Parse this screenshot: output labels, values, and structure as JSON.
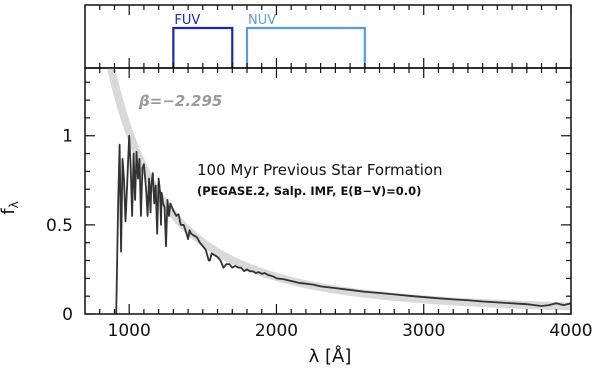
{
  "chart_data": {
    "type": "line",
    "xlabel": "λ  [Å]",
    "ylabel": "f",
    "ylabel_subscript": "λ",
    "xlim": [
      700,
      4000
    ],
    "ylim": [
      0,
      1.38
    ],
    "xticks_major": [
      1000,
      2000,
      3000,
      4000
    ],
    "xticks_minor_step": 100,
    "yticks_major": [
      0,
      0.5,
      1
    ],
    "ytick_labels": [
      "0",
      "0.5",
      "1"
    ],
    "yticks_minor_step": 0.1,
    "colors": {
      "spectrum": "#333333",
      "fit": "#d9d9d9",
      "fuv": "#1a2aa8",
      "nuv": "#5b9be0",
      "beta_text": "#9a9a9a"
    },
    "annotations": {
      "beta_symbol": "β",
      "beta_value": "=−2.295",
      "title_line1": "100 Myr Previous Star Formation",
      "title_line2": "(PEGASE.2, Salp. IMF, E(B−V)=0.0)"
    },
    "filters": [
      {
        "name": "FUV",
        "x_start": 1300,
        "x_end": 1700,
        "color": "#1a2aa8"
      },
      {
        "name": "NUV",
        "x_start": 1800,
        "x_end": 2600,
        "color": "#5b9be0"
      }
    ],
    "series": [
      {
        "type": "powerlaw_fit",
        "beta": -2.295,
        "norm_at_1000": 1.02,
        "x_range": [
          850,
          4000
        ]
      },
      {
        "type": "spectrum",
        "x": [
          912,
          925,
          935,
          945,
          955,
          965,
          975,
          985,
          1000,
          1010,
          1020,
          1030,
          1040,
          1050,
          1060,
          1070,
          1080,
          1090,
          1100,
          1115,
          1125,
          1135,
          1145,
          1150,
          1160,
          1170,
          1180,
          1190,
          1200,
          1210,
          1216,
          1220,
          1230,
          1240,
          1250,
          1260,
          1270,
          1280,
          1290,
          1300,
          1320,
          1335,
          1350,
          1370,
          1390,
          1400,
          1410,
          1420,
          1440,
          1460,
          1480,
          1500,
          1520,
          1540,
          1548,
          1560,
          1580,
          1600,
          1620,
          1640,
          1660,
          1680,
          1700,
          1720,
          1740,
          1760,
          1780,
          1800,
          1820,
          1840,
          1860,
          1880,
          1900,
          1920,
          1940,
          1960,
          1980,
          2000,
          2050,
          2100,
          2150,
          2200,
          2250,
          2300,
          2400,
          2500,
          2600,
          2700,
          2800,
          2900,
          3000,
          3100,
          3200,
          3300,
          3400,
          3500,
          3600,
          3700,
          3750,
          3800,
          3850,
          3900,
          3950,
          4000
        ],
        "y": [
          0.0,
          0.62,
          0.95,
          0.35,
          0.87,
          0.75,
          0.52,
          0.7,
          1.0,
          0.83,
          0.55,
          0.9,
          0.64,
          0.91,
          0.76,
          0.87,
          0.55,
          0.82,
          0.84,
          0.7,
          0.55,
          0.76,
          0.57,
          0.72,
          0.79,
          0.62,
          0.72,
          0.45,
          0.76,
          0.68,
          0.5,
          0.68,
          0.62,
          0.6,
          0.38,
          0.64,
          0.55,
          0.62,
          0.6,
          0.58,
          0.55,
          0.56,
          0.5,
          0.5,
          0.45,
          0.42,
          0.47,
          0.45,
          0.44,
          0.43,
          0.4,
          0.38,
          0.36,
          0.3,
          0.3,
          0.34,
          0.33,
          0.32,
          0.3,
          0.26,
          0.28,
          0.28,
          0.26,
          0.27,
          0.26,
          0.26,
          0.24,
          0.25,
          0.24,
          0.24,
          0.23,
          0.235,
          0.225,
          0.23,
          0.22,
          0.215,
          0.21,
          0.2,
          0.195,
          0.185,
          0.175,
          0.17,
          0.165,
          0.155,
          0.145,
          0.135,
          0.125,
          0.118,
          0.11,
          0.102,
          0.095,
          0.088,
          0.082,
          0.077,
          0.07,
          0.065,
          0.06,
          0.055,
          0.05,
          0.045,
          0.05,
          0.06,
          0.05,
          0.06
        ]
      }
    ]
  }
}
